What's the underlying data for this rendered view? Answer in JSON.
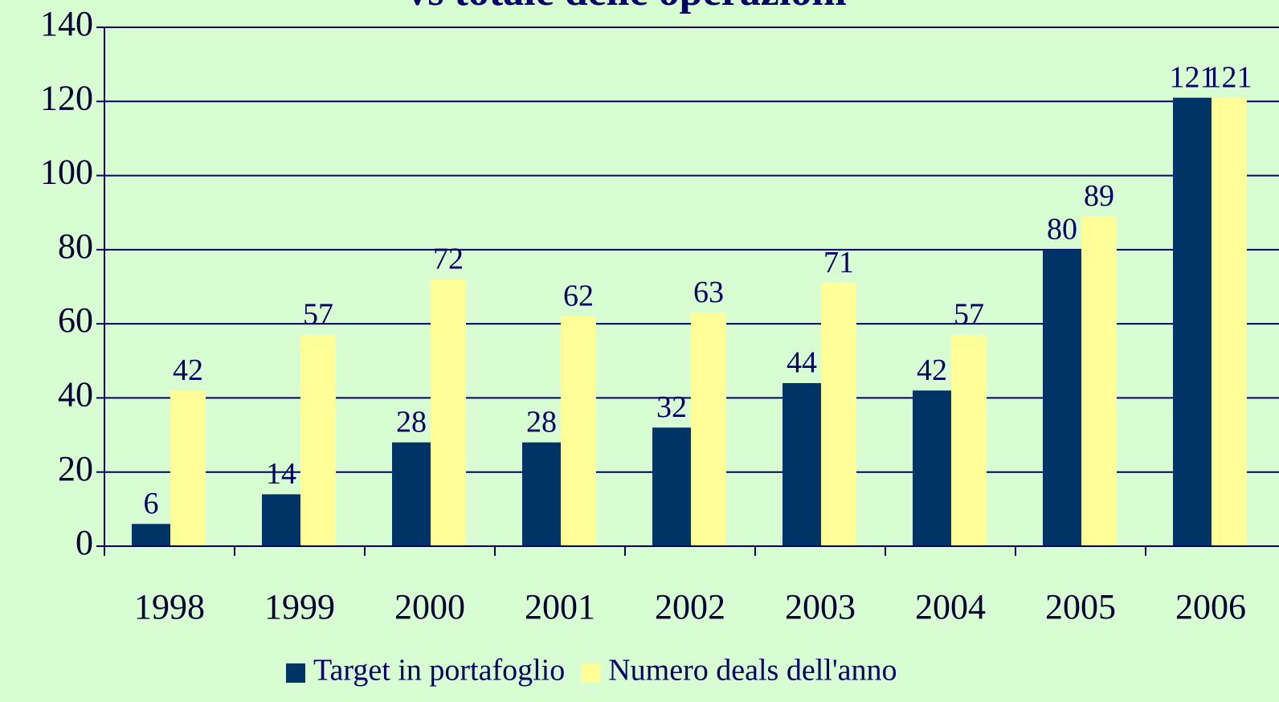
{
  "chart_data": {
    "type": "bar",
    "title": "vs totale delle operazioni",
    "categories": [
      "1998",
      "1999",
      "2000",
      "2001",
      "2002",
      "2003",
      "2004",
      "2005",
      "2006"
    ],
    "series": [
      {
        "name": "Target in portafoglio",
        "color": "#003366",
        "values": [
          6,
          14,
          28,
          28,
          32,
          44,
          42,
          80,
          121
        ]
      },
      {
        "name": "Numero deals dell'anno",
        "color": "#ffff99",
        "values": [
          42,
          57,
          72,
          62,
          63,
          71,
          57,
          89,
          121
        ]
      }
    ],
    "ylim": [
      0,
      140
    ],
    "yticks": [
      0,
      20,
      40,
      60,
      80,
      100,
      120,
      140
    ],
    "grid": true,
    "legend": "bottom"
  }
}
